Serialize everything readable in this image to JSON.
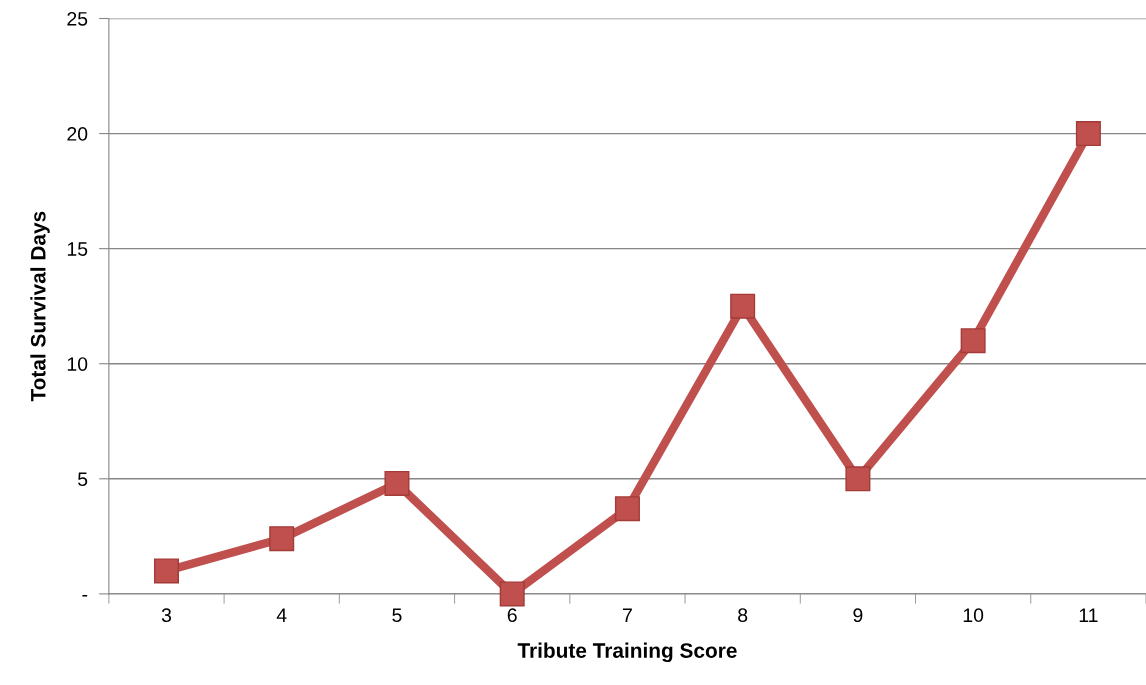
{
  "chart_data": {
    "type": "line",
    "xlabel": "Tribute Training Score",
    "ylabel": "Total Survival Days",
    "categories": [
      "3",
      "4",
      "5",
      "6",
      "7",
      "8",
      "9",
      "10",
      "11"
    ],
    "series": [
      {
        "color": "#c0504d",
        "values": [
          1,
          2.4,
          4.8,
          0,
          3.7,
          12.5,
          5,
          11,
          20
        ]
      }
    ],
    "ylim": [
      0,
      25
    ],
    "yticks": [
      {
        "value": 0,
        "label": "-"
      },
      5,
      10,
      15,
      20,
      25
    ],
    "grid": "y",
    "marker": "square",
    "line_style": "solid"
  }
}
